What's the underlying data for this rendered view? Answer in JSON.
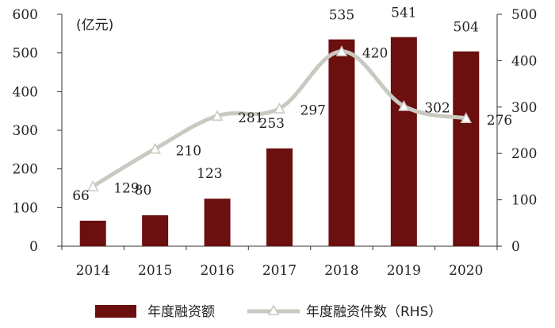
{
  "chart_data": {
    "type": "bar",
    "categories": [
      "2014",
      "2015",
      "2016",
      "2017",
      "2018",
      "2019",
      "2020"
    ],
    "series": [
      {
        "name": "年度融资额",
        "type": "bar",
        "axis": "left",
        "color": "#6b0f0f",
        "values": [
          66,
          80,
          123,
          253,
          535,
          541,
          504
        ],
        "labels": [
          "66",
          "80",
          "123",
          "253",
          "535",
          "541",
          "504"
        ]
      },
      {
        "name": "年度融资件数（RHS）",
        "type": "line",
        "axis": "right",
        "color": "#c9c9c1",
        "marker": "triangle",
        "values": [
          129,
          210,
          281,
          297,
          420,
          302,
          276
        ],
        "labels": [
          "129",
          "210",
          "281",
          "297",
          "420",
          "302",
          "276"
        ]
      }
    ],
    "unit_label": "(亿元)",
    "ylim_left": [
      0,
      600
    ],
    "yticks_left": [
      "0",
      "100",
      "200",
      "300",
      "400",
      "500",
      "600"
    ],
    "ylim_right": [
      0,
      500
    ],
    "yticks_right": [
      "0",
      "100",
      "200",
      "300",
      "400",
      "500"
    ],
    "grid": false,
    "legend_position": "bottom"
  }
}
